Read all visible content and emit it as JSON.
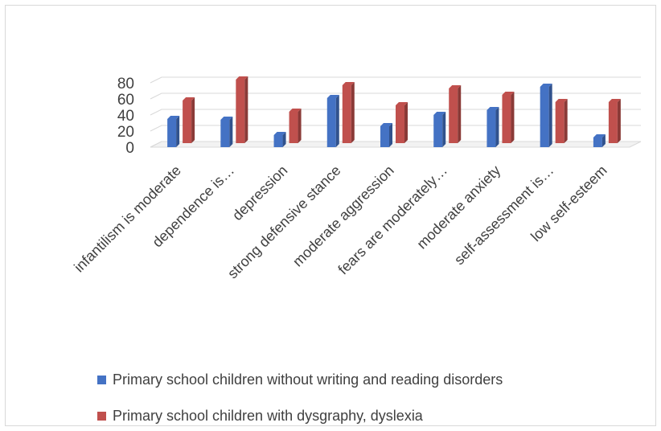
{
  "chart_data": {
    "type": "bar",
    "categories": [
      "infantilism is moderate",
      "dependence is…",
      "depression",
      "strong defensive stance",
      "moderate aggression",
      "fears are moderately…",
      "moderate anxiety",
      "self-assessment is…",
      "low self-esteem"
    ],
    "series": [
      {
        "name": "Primary school children without writing and reading disorders",
        "values": [
          35,
          34,
          15,
          61,
          26,
          40,
          46,
          75,
          12
        ],
        "color": "#4472c4"
      },
      {
        "name": "Primary school children with dysgraphy, dyslexia",
        "values": [
          53,
          79,
          39,
          72,
          47,
          68,
          60,
          51,
          51
        ],
        "color": "#c0504d"
      }
    ],
    "yticks": [
      0,
      20,
      40,
      60,
      80
    ],
    "ylim": [
      0,
      80
    ],
    "grid": true,
    "legend_position": "bottom"
  }
}
